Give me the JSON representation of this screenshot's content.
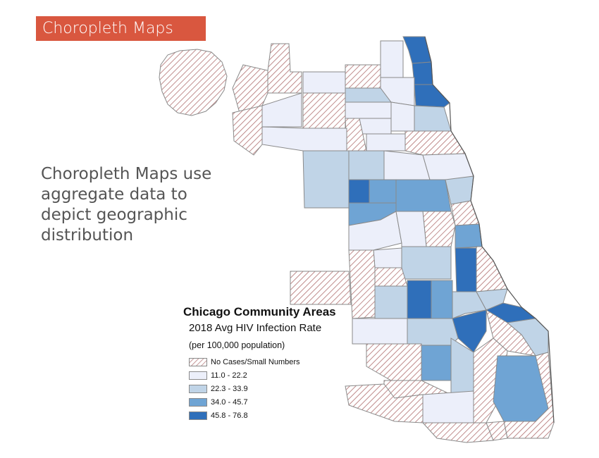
{
  "header": {
    "title": "Choropleth Maps"
  },
  "description": {
    "lines": [
      "Choropleth Maps use",
      "aggregate data to",
      "depict geographic",
      "distribution"
    ]
  },
  "legend": {
    "title": "Chicago Community Areas",
    "subtitle": "2018 Avg HIV Infection Rate",
    "units": "(per 100,000 population)",
    "classes": [
      {
        "label": "No Cases/Small Numbers",
        "color": "hatched"
      },
      {
        "label": "11.0 - 22.2",
        "color": "#eceffa"
      },
      {
        "label": "22.3 - 33.9",
        "color": "#c0d4e7"
      },
      {
        "label": "34.0 - 45.7",
        "color": "#6fa4d4"
      },
      {
        "label": "45.8 - 76.8",
        "color": "#2f6fba"
      }
    ]
  },
  "colors": {
    "title_bar": "#d9573f",
    "hatch_line": "#b07070",
    "boundary": "#8a8a8a",
    "lake_shore": "#555555"
  }
}
